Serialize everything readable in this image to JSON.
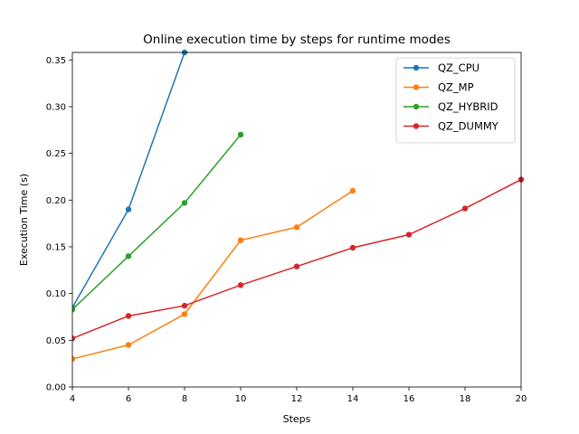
{
  "chart_data": {
    "type": "line",
    "title": "Online execution time by steps for runtime modes",
    "xlabel": "Steps",
    "ylabel": "Execution Time (s)",
    "xlim": [
      4,
      20
    ],
    "ylim": [
      0,
      0.358
    ],
    "xticks": [
      4,
      6,
      8,
      10,
      12,
      14,
      16,
      18,
      20
    ],
    "yticks": [
      0.0,
      0.05,
      0.1,
      0.15,
      0.2,
      0.25,
      0.3,
      0.35
    ],
    "ytick_labels": [
      "0.00",
      "0.05",
      "0.10",
      "0.15",
      "0.20",
      "0.25",
      "0.30",
      "0.35"
    ],
    "grid": false,
    "legend_position": "top-right",
    "series": [
      {
        "name": "QZ_CPU",
        "color": "#1f77b4",
        "x": [
          4,
          6,
          8
        ],
        "y": [
          0.085,
          0.19,
          0.358
        ]
      },
      {
        "name": "QZ_MP",
        "color": "#ff7f0e",
        "x": [
          4,
          6,
          8,
          10,
          12,
          14
        ],
        "y": [
          0.03,
          0.045,
          0.078,
          0.157,
          0.171,
          0.21
        ]
      },
      {
        "name": "QZ_HYBRID",
        "color": "#2ca02c",
        "x": [
          4,
          6,
          8,
          10
        ],
        "y": [
          0.083,
          0.14,
          0.197,
          0.27
        ]
      },
      {
        "name": "QZ_DUMMY",
        "color": "#d62728",
        "x": [
          4,
          6,
          8,
          10,
          12,
          14,
          16,
          18,
          20
        ],
        "y": [
          0.052,
          0.076,
          0.087,
          0.109,
          0.129,
          0.149,
          0.163,
          0.191,
          0.222
        ]
      }
    ]
  }
}
